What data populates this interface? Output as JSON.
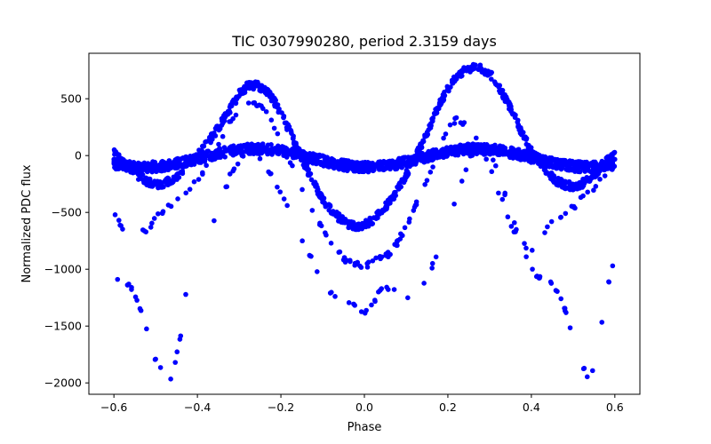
{
  "chart_data": {
    "type": "scatter",
    "title": "TIC 0307990280, period 2.3159 days",
    "xlabel": "Phase",
    "ylabel": "Normalized PDC flux",
    "xlim": [
      -0.66,
      0.66
    ],
    "ylim": [
      -2100,
      900
    ],
    "xticks": [
      -0.6,
      -0.4,
      -0.2,
      0.0,
      0.2,
      0.4,
      0.6
    ],
    "xtick_labels": [
      "−0.6",
      "−0.4",
      "−0.2",
      "0.0",
      "0.2",
      "0.4",
      "0.6"
    ],
    "yticks": [
      500,
      0,
      -500,
      -1000,
      -1500,
      -2000
    ],
    "ytick_labels": [
      "500",
      "0",
      "−500",
      "−1000",
      "−1500",
      "−2000"
    ],
    "grid": false,
    "marker_color": "#0000ff",
    "phase_range": [
      -0.6,
      0.6
    ],
    "series": [
      {
        "description_key": "upper_envelope",
        "points": [
          [
            -0.6,
            30
          ],
          [
            -0.58,
            -60
          ],
          [
            -0.56,
            -120
          ],
          [
            -0.54,
            -180
          ],
          [
            -0.52,
            -230
          ],
          [
            -0.5,
            -260
          ],
          [
            -0.48,
            -250
          ],
          [
            -0.46,
            -210
          ],
          [
            -0.44,
            -150
          ],
          [
            -0.42,
            -80
          ],
          [
            -0.4,
            0
          ],
          [
            -0.38,
            90
          ],
          [
            -0.36,
            190
          ],
          [
            -0.34,
            300
          ],
          [
            -0.32,
            420
          ],
          [
            -0.3,
            540
          ],
          [
            -0.28,
            610
          ],
          [
            -0.26,
            620
          ],
          [
            -0.24,
            590
          ],
          [
            -0.22,
            500
          ],
          [
            -0.2,
            370
          ],
          [
            -0.18,
            220
          ],
          [
            -0.16,
            60
          ],
          [
            -0.14,
            -100
          ],
          [
            -0.12,
            -250
          ],
          [
            -0.1,
            -380
          ],
          [
            -0.08,
            -480
          ],
          [
            -0.06,
            -550
          ],
          [
            -0.04,
            -600
          ],
          [
            -0.02,
            -620
          ],
          [
            0.0,
            -610
          ],
          [
            0.02,
            -570
          ],
          [
            0.04,
            -500
          ],
          [
            0.06,
            -410
          ],
          [
            0.08,
            -300
          ],
          [
            0.1,
            -170
          ],
          [
            0.12,
            -30
          ],
          [
            0.14,
            120
          ],
          [
            0.16,
            290
          ],
          [
            0.18,
            450
          ],
          [
            0.2,
            590
          ],
          [
            0.22,
            690
          ],
          [
            0.24,
            750
          ],
          [
            0.26,
            780
          ],
          [
            0.28,
            770
          ],
          [
            0.3,
            720
          ],
          [
            0.32,
            620
          ],
          [
            0.34,
            490
          ],
          [
            0.36,
            340
          ],
          [
            0.38,
            180
          ],
          [
            0.4,
            40
          ],
          [
            0.42,
            -70
          ],
          [
            0.44,
            -160
          ],
          [
            0.46,
            -220
          ],
          [
            0.48,
            -260
          ],
          [
            0.5,
            -270
          ],
          [
            0.52,
            -250
          ],
          [
            0.54,
            -200
          ],
          [
            0.56,
            -130
          ],
          [
            0.58,
            -50
          ],
          [
            0.6,
            20
          ]
        ]
      },
      {
        "description_key": "lower_envelope",
        "points": [
          [
            -0.6,
            -1070
          ],
          [
            -0.58,
            -1080
          ],
          [
            -0.56,
            -1150
          ],
          [
            -0.54,
            -1300
          ],
          [
            -0.52,
            -1540
          ],
          [
            -0.5,
            -1800
          ],
          [
            -0.48,
            -1910
          ],
          [
            -0.46,
            -1960
          ],
          [
            -0.44,
            -1570
          ],
          [
            -0.42,
            -1020
          ],
          [
            -0.4,
            -880
          ],
          [
            -0.38,
            -740
          ],
          [
            -0.36,
            -560
          ],
          [
            -0.34,
            -380
          ],
          [
            -0.32,
            -160
          ],
          [
            -0.3,
            -40
          ],
          [
            -0.28,
            60
          ],
          [
            -0.26,
            30
          ],
          [
            -0.24,
            -50
          ],
          [
            -0.22,
            -200
          ],
          [
            -0.2,
            -330
          ],
          [
            -0.18,
            -470
          ],
          [
            -0.16,
            -640
          ],
          [
            -0.14,
            -810
          ],
          [
            -0.12,
            -960
          ],
          [
            -0.1,
            -1090
          ],
          [
            -0.08,
            -1200
          ],
          [
            -0.06,
            -1280
          ],
          [
            -0.04,
            -1300
          ],
          [
            -0.02,
            -1310
          ],
          [
            0.0,
            -1380
          ],
          [
            0.02,
            -1300
          ],
          [
            0.04,
            -1180
          ],
          [
            0.06,
            -1170
          ],
          [
            0.08,
            -1180
          ],
          [
            0.1,
            -1240
          ],
          [
            0.12,
            -1250
          ],
          [
            0.14,
            -1150
          ],
          [
            0.16,
            -1000
          ],
          [
            0.18,
            -800
          ],
          [
            0.2,
            -580
          ],
          [
            0.22,
            -380
          ],
          [
            0.24,
            -150
          ],
          [
            0.26,
            30
          ],
          [
            0.28,
            120
          ],
          [
            0.3,
            40
          ],
          [
            0.32,
            -140
          ],
          [
            0.34,
            -380
          ],
          [
            0.36,
            -600
          ],
          [
            0.38,
            -800
          ],
          [
            0.4,
            -1000
          ],
          [
            0.42,
            -1080
          ],
          [
            0.44,
            -1100
          ],
          [
            0.46,
            -1180
          ],
          [
            0.48,
            -1350
          ],
          [
            0.5,
            -1600
          ],
          [
            0.52,
            -1850
          ],
          [
            0.54,
            -1960
          ],
          [
            0.56,
            -1700
          ],
          [
            0.58,
            -1200
          ],
          [
            0.6,
            -900
          ]
        ]
      },
      {
        "description_key": "secondary_lower",
        "points": [
          [
            -0.6,
            -500
          ],
          [
            -0.58,
            -620
          ],
          [
            -0.56,
            -700
          ],
          [
            -0.54,
            -710
          ],
          [
            -0.52,
            -640
          ],
          [
            -0.5,
            -560
          ],
          [
            -0.48,
            -470
          ],
          [
            -0.46,
            -420
          ],
          [
            -0.44,
            -380
          ],
          [
            -0.42,
            -300
          ],
          [
            -0.4,
            -220
          ],
          [
            -0.38,
            -100
          ],
          [
            -0.36,
            40
          ],
          [
            -0.34,
            180
          ],
          [
            -0.32,
            300
          ],
          [
            -0.3,
            420
          ],
          [
            -0.28,
            480
          ],
          [
            -0.26,
            460
          ],
          [
            -0.24,
            400
          ],
          [
            -0.22,
            280
          ],
          [
            -0.2,
            120
          ],
          [
            -0.18,
            -40
          ],
          [
            -0.16,
            -200
          ],
          [
            -0.14,
            -360
          ],
          [
            -0.12,
            -510
          ],
          [
            -0.1,
            -650
          ],
          [
            -0.08,
            -760
          ],
          [
            -0.06,
            -860
          ],
          [
            -0.04,
            -940
          ],
          [
            -0.02,
            -960
          ],
          [
            0.0,
            -980
          ],
          [
            0.02,
            -940
          ],
          [
            0.04,
            -900
          ],
          [
            0.06,
            -860
          ],
          [
            0.08,
            -760
          ],
          [
            0.1,
            -620
          ],
          [
            0.12,
            -460
          ],
          [
            0.14,
            -300
          ],
          [
            0.16,
            -120
          ],
          [
            0.18,
            60
          ],
          [
            0.2,
            220
          ],
          [
            0.22,
            330
          ],
          [
            0.24,
            290
          ],
          [
            0.26,
            200
          ],
          [
            0.28,
            80
          ],
          [
            0.3,
            -100
          ],
          [
            0.32,
            -300
          ],
          [
            0.34,
            -480
          ],
          [
            0.36,
            -680
          ],
          [
            0.38,
            -760
          ],
          [
            0.4,
            -840
          ],
          [
            0.42,
            -760
          ],
          [
            0.44,
            -620
          ],
          [
            0.46,
            -560
          ],
          [
            0.48,
            -520
          ],
          [
            0.5,
            -460
          ],
          [
            0.52,
            -380
          ],
          [
            0.54,
            -320
          ],
          [
            0.56,
            -240
          ],
          [
            0.58,
            -150
          ],
          [
            0.6,
            -40
          ]
        ]
      }
    ]
  }
}
